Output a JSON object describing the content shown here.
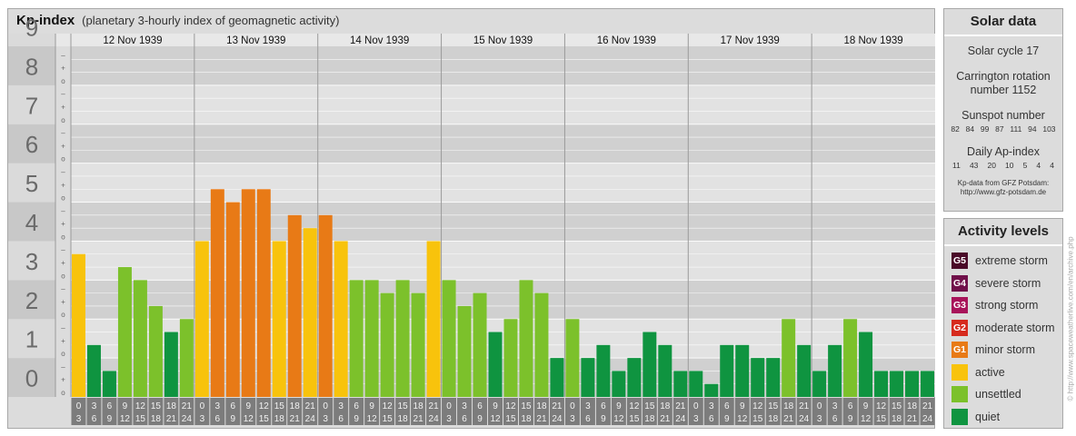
{
  "header": {
    "title": "Kp-index",
    "subtitle": "(planetary 3-hourly index of geomagnetic activity)"
  },
  "chart_data": {
    "type": "bar",
    "title": "Kp-index",
    "subtitle": "(planetary 3-hourly index of geomagnetic activity)",
    "ylim": [
      0,
      9
    ],
    "y_ticks": [
      "0",
      "1",
      "2",
      "3",
      "4",
      "5",
      "6",
      "7",
      "8",
      "9"
    ],
    "minor_tick_labels": [
      "o",
      "+",
      "–"
    ],
    "days": [
      "12 Nov 1939",
      "13 Nov 1939",
      "14 Nov 1939",
      "15 Nov 1939",
      "16 Nov 1939",
      "17 Nov 1939",
      "18 Nov 1939"
    ],
    "interval_labels_top": [
      "0",
      "3",
      "6",
      "9",
      "12",
      "15",
      "18",
      "21"
    ],
    "interval_labels_bottom": [
      "3",
      "6",
      "9",
      "12",
      "15",
      "18",
      "21",
      "24"
    ],
    "values": [
      [
        3.667,
        1.333,
        0.667,
        3.333,
        3.0,
        2.333,
        1.667,
        2.0
      ],
      [
        4.0,
        5.333,
        5.0,
        5.333,
        5.333,
        4.0,
        4.667,
        4.333
      ],
      [
        4.667,
        4.0,
        3.0,
        3.0,
        2.667,
        3.0,
        2.667,
        4.0
      ],
      [
        3.0,
        2.333,
        2.667,
        1.667,
        2.0,
        3.0,
        2.667,
        1.0
      ],
      [
        2.0,
        1.0,
        1.333,
        0.667,
        1.0,
        1.667,
        1.333,
        0.667
      ],
      [
        0.667,
        0.333,
        1.333,
        1.333,
        1.0,
        1.0,
        2.0,
        1.333
      ],
      [
        0.667,
        1.333,
        2.0,
        1.667,
        0.667,
        0.667,
        0.667,
        0.667
      ]
    ],
    "color_scale": {
      "quiet": "#0f9440",
      "unsettled": "#7cc12b",
      "active": "#f8c30c",
      "minor_storm": "#e87a16",
      "moderate_storm": "#d62a1d",
      "strong_storm": "#a8135a",
      "severe_storm": "#70104a",
      "extreme_storm": "#4a0a28"
    },
    "thresholds": {
      "unsettled": 2,
      "active": 3.667,
      "minor_storm": 4.667
    }
  },
  "solar_data": {
    "heading": "Solar data",
    "cycle": "Solar cycle 17",
    "carrington_line1": "Carrington rotation",
    "carrington_line2": "number 1152",
    "sunspot_label": "Sunspot number",
    "sunspot_values": [
      "82",
      "84",
      "99",
      "87",
      "111",
      "94",
      "103"
    ],
    "ap_label": "Daily Ap-index",
    "ap_values": [
      "11",
      "43",
      "20",
      "10",
      "5",
      "4",
      "4"
    ],
    "source_line1": "Kp-data from GFZ Potsdam:",
    "source_line2": "http://www.gfz-potsdam.de"
  },
  "activity_levels": {
    "heading": "Activity levels",
    "items": [
      {
        "badge": "G5",
        "label": "extreme storm",
        "color": "#4a0a28"
      },
      {
        "badge": "G4",
        "label": "severe storm",
        "color": "#70104a"
      },
      {
        "badge": "G3",
        "label": "strong storm",
        "color": "#a8135a"
      },
      {
        "badge": "G2",
        "label": "moderate storm",
        "color": "#d62a1d"
      },
      {
        "badge": "G1",
        "label": "minor storm",
        "color": "#e87a16"
      },
      {
        "badge": "",
        "label": "active",
        "color": "#f8c30c"
      },
      {
        "badge": "",
        "label": "unsettled",
        "color": "#7cc12b"
      },
      {
        "badge": "",
        "label": "quiet",
        "color": "#0f9440"
      }
    ]
  },
  "watermark": "© http://www.spaceweatherlive.com/en/archive.php"
}
